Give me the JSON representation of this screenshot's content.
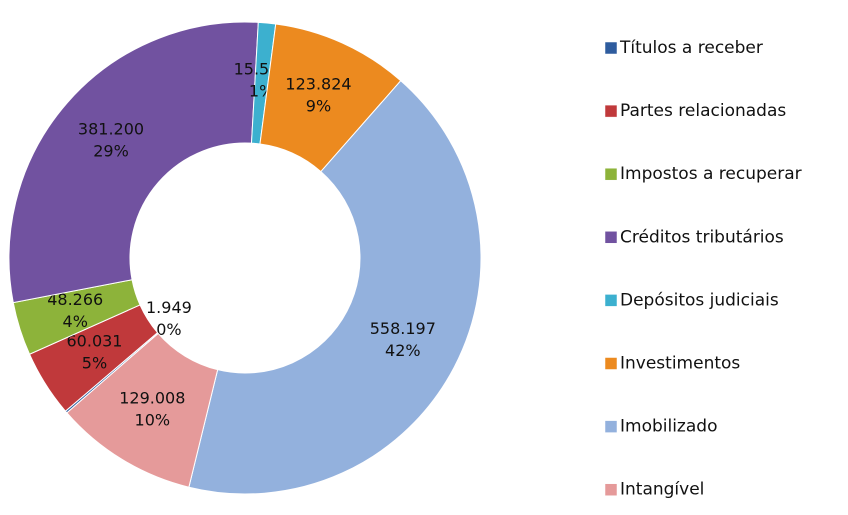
{
  "chart_data": {
    "type": "donut",
    "categories": [
      "Títulos a receber",
      "Partes relacionadas",
      "Impostos a recuperar",
      "Créditos tributários",
      "Depósitos judiciais",
      "Investimentos",
      "Imobilizado",
      "Intangível"
    ],
    "values": [
      1949,
      60031,
      48266,
      381200,
      15562,
      123824,
      558197,
      129008
    ],
    "value_labels": [
      "1.949",
      "60.031",
      "48.266",
      "381.200",
      "15.562",
      "123.824",
      "558.197",
      "129.008"
    ],
    "percent_labels": [
      "0%",
      "5%",
      "4%",
      "29%",
      "1%",
      "9%",
      "42%",
      "10%"
    ],
    "colors": [
      "#2e5c9e",
      "#c0393b",
      "#8db33a",
      "#7152a0",
      "#3cb0cf",
      "#ec8a1f",
      "#93b1dd",
      "#e59a9a"
    ],
    "legend": "right"
  }
}
